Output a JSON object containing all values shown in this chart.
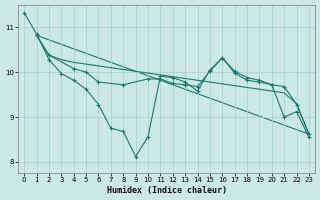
{
  "xlabel": "Humidex (Indice chaleur)",
  "background_color": "#cce9e6",
  "grid_color": "#aad4d0",
  "line_color": "#1a7a6e",
  "xlim": [
    -0.5,
    23.5
  ],
  "ylim": [
    7.75,
    11.5
  ],
  "xticks": [
    0,
    1,
    2,
    3,
    4,
    5,
    6,
    7,
    8,
    9,
    10,
    11,
    12,
    13,
    14,
    15,
    16,
    17,
    18,
    19,
    20,
    21,
    22,
    23
  ],
  "yticks": [
    8,
    9,
    10,
    11
  ],
  "line1_x": [
    0,
    1,
    2,
    3,
    4,
    5,
    6,
    7,
    8,
    9,
    10,
    11,
    12,
    13,
    14,
    15,
    16,
    17,
    18,
    19,
    20,
    21,
    22,
    23
  ],
  "line1_y": [
    11.32,
    10.85,
    10.28,
    9.97,
    9.82,
    9.62,
    9.28,
    8.75,
    8.68,
    8.12,
    8.56,
    9.91,
    9.88,
    9.78,
    9.58,
    10.05,
    10.32,
    10.02,
    9.88,
    9.82,
    9.72,
    9.0,
    9.12,
    8.55
  ],
  "line2_x": [
    1,
    2,
    3,
    4,
    5,
    6,
    7,
    8,
    9,
    10,
    11,
    12,
    13,
    14,
    15,
    16,
    17,
    18,
    19,
    20,
    21,
    22,
    23
  ],
  "line2_y": [
    10.82,
    10.38,
    10.28,
    10.22,
    10.18,
    10.14,
    10.1,
    10.06,
    10.02,
    9.98,
    9.94,
    9.9,
    9.86,
    9.82,
    9.78,
    9.74,
    9.7,
    9.66,
    9.62,
    9.58,
    9.54,
    9.3,
    8.62
  ],
  "line3_x": [
    1,
    2,
    4,
    5,
    6,
    8,
    10,
    11,
    12,
    13,
    14,
    15,
    16,
    17,
    18,
    19,
    20,
    21,
    22,
    23
  ],
  "line3_y": [
    10.82,
    10.38,
    10.08,
    10.0,
    9.78,
    9.72,
    9.85,
    9.85,
    9.75,
    9.72,
    9.68,
    10.02,
    10.32,
    9.98,
    9.82,
    9.78,
    9.72,
    9.68,
    9.28,
    8.62
  ],
  "line4_x": [
    1,
    23
  ],
  "line4_y": [
    10.82,
    8.62
  ]
}
